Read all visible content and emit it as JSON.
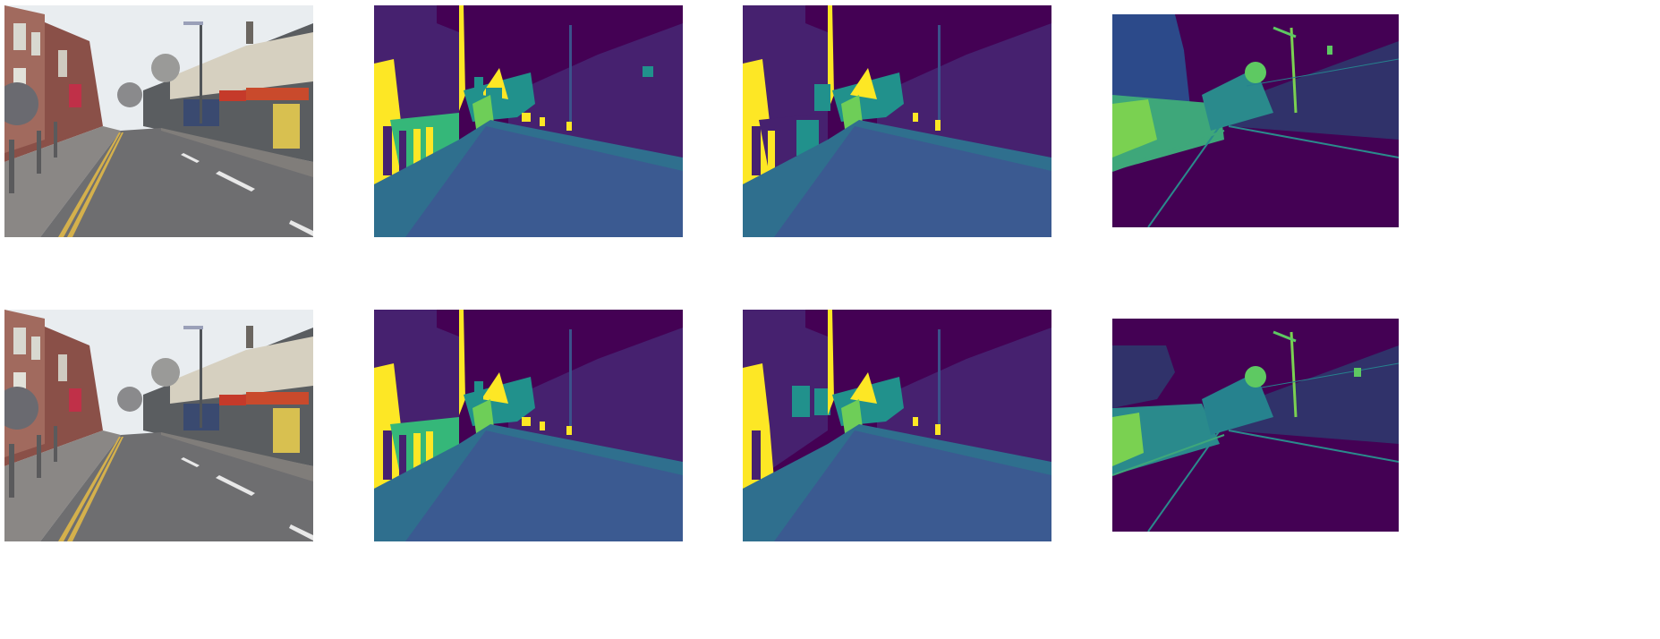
{
  "figure": {
    "rows": [
      {
        "panels": [
          {
            "kind": "street-photo"
          },
          {
            "kind": "segmentation-map"
          },
          {
            "kind": "segmentation-map"
          },
          {
            "kind": "uncertainty-heatmap"
          }
        ]
      },
      {
        "panels": [
          {
            "kind": "street-photo"
          },
          {
            "kind": "segmentation-map"
          },
          {
            "kind": "segmentation-map"
          },
          {
            "kind": "uncertainty-heatmap"
          }
        ]
      }
    ],
    "palette": {
      "sky": "#440154",
      "building": "#46216f",
      "pole": "#3b528b",
      "road": "#3b5a91",
      "pavement": "#2f6f8e",
      "tree": "#21918c",
      "fence": "#35b779",
      "sign": "#6ece58",
      "pedestrian_car": "#fde725"
    }
  }
}
